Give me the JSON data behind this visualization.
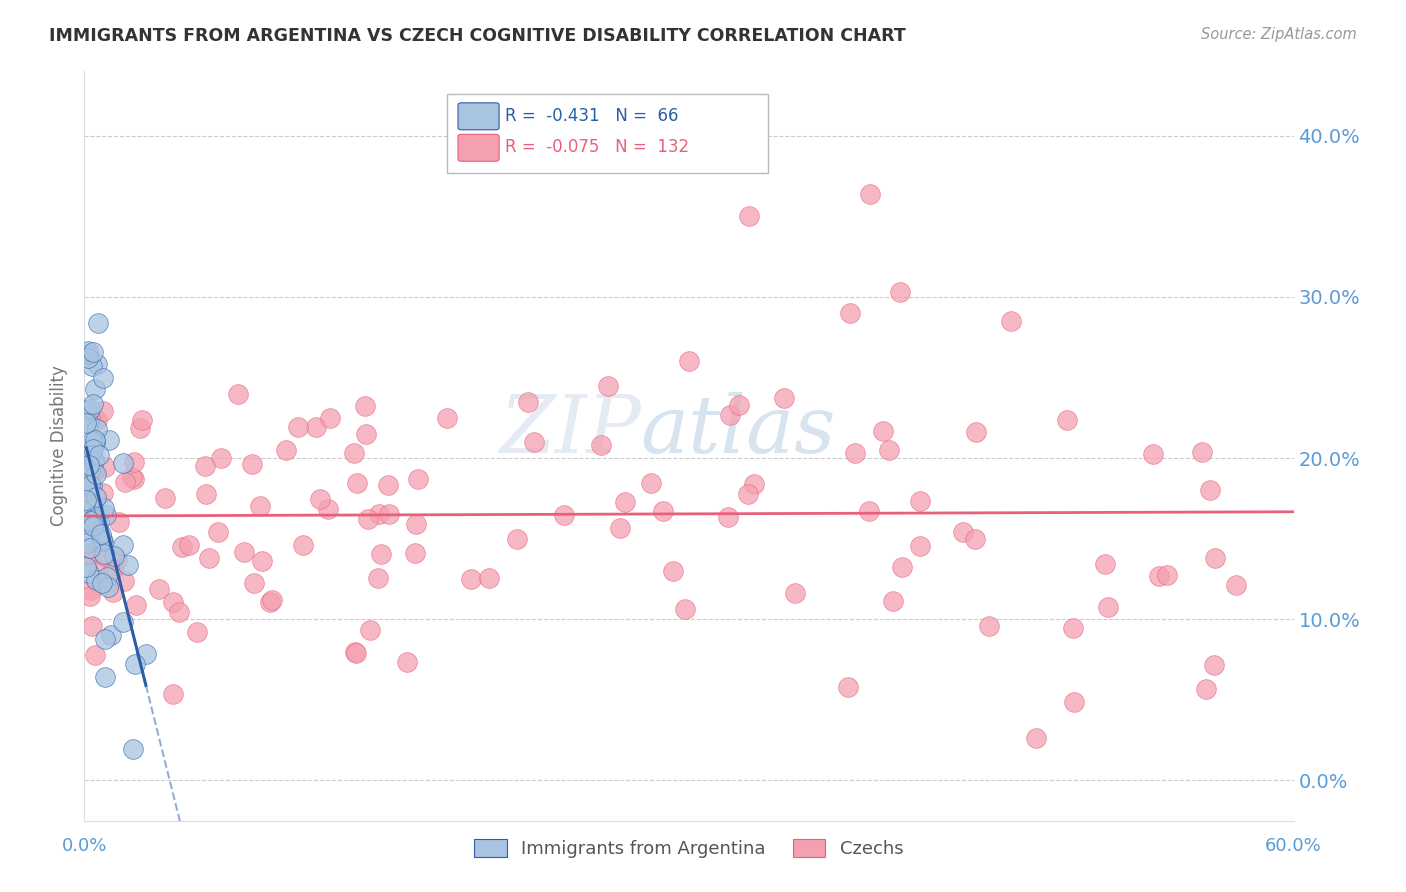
{
  "title": "IMMIGRANTS FROM ARGENTINA VS CZECH COGNITIVE DISABILITY CORRELATION CHART",
  "source": "Source: ZipAtlas.com",
  "ylabel": "Cognitive Disability",
  "ytick_values": [
    0.0,
    0.1,
    0.2,
    0.3,
    0.4
  ],
  "xlim": [
    0.0,
    0.6
  ],
  "ylim": [
    -0.025,
    0.44
  ],
  "argentina_R": "-0.431",
  "argentina_N": "66",
  "czech_R": "-0.075",
  "czech_N": "132",
  "argentina_color": "#a8c4e0",
  "argentina_line_color": "#2b5ea7",
  "czech_color": "#f4a0b0",
  "czech_line_color": "#e8607a",
  "background_color": "#ffffff",
  "grid_color": "#cccccc",
  "title_color": "#333333",
  "axis_label_color": "#5b9bd5",
  "watermark_zip": "ZIP",
  "watermark_atlas": "atlas",
  "legend_label_argentina": "Immigrants from Argentina",
  "legend_label_czech": "Czechs"
}
